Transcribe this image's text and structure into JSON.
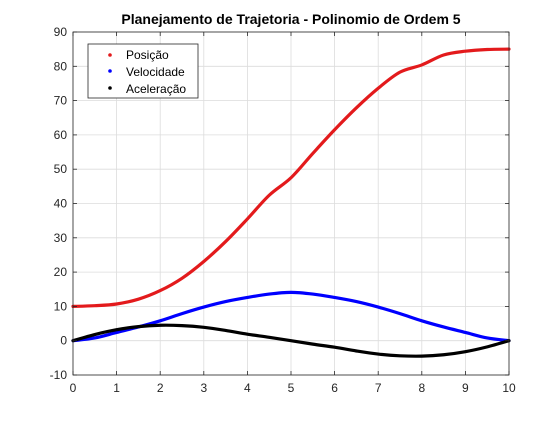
{
  "chart_data": {
    "type": "line",
    "title": "Planejamento de Trajetoria - Polinomio de Ordem 5",
    "xlabel": "",
    "ylabel": "",
    "xlim": [
      0,
      10
    ],
    "ylim": [
      -10,
      90
    ],
    "xticks": [
      0,
      1,
      2,
      3,
      4,
      5,
      6,
      7,
      8,
      9,
      10
    ],
    "yticks": [
      -10,
      0,
      10,
      20,
      30,
      40,
      50,
      60,
      70,
      80,
      90
    ],
    "grid": true,
    "legend_position": "top-left",
    "x": [
      0,
      0.5,
      1,
      1.5,
      2,
      2.5,
      3,
      3.5,
      4,
      4.5,
      5,
      5.5,
      6,
      6.5,
      7,
      7.5,
      8,
      8.5,
      9,
      9.5,
      10
    ],
    "series": [
      {
        "name": "Posição",
        "color": "#e31a1c",
        "values": [
          10,
          10.2,
          10.7,
          12.1,
          14.6,
          18.2,
          23.1,
          28.9,
          35.5,
          42.4,
          47.5,
          54.6,
          61.5,
          67.9,
          73.6,
          78.3,
          80.4,
          83.3,
          84.4,
          84.9,
          85
        ]
      },
      {
        "name": "Velocidade",
        "color": "#0000ff",
        "values": [
          0,
          0.8,
          2.4,
          4.0,
          5.8,
          7.9,
          9.8,
          11.4,
          12.6,
          13.6,
          14.1,
          13.6,
          12.6,
          11.4,
          9.8,
          7.9,
          5.8,
          4.0,
          2.4,
          0.8,
          0
        ]
      },
      {
        "name": "Aceleração",
        "color": "#000000",
        "values": [
          0,
          1.8,
          3.2,
          4.1,
          4.5,
          4.4,
          3.9,
          3.0,
          1.9,
          1.0,
          0,
          -1.0,
          -1.9,
          -3.0,
          -3.9,
          -4.4,
          -4.5,
          -4.1,
          -3.2,
          -1.8,
          0
        ]
      }
    ]
  }
}
